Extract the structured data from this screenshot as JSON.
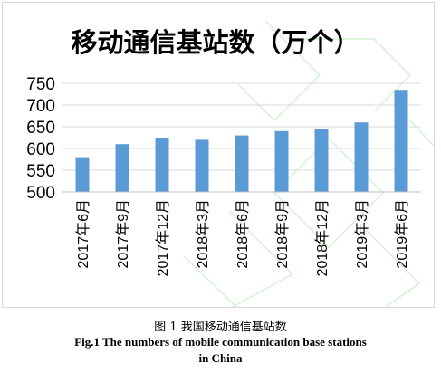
{
  "chart_data": {
    "type": "bar",
    "title": "移动通信基站数（万个）",
    "categories": [
      "2017年6月",
      "2017年9月",
      "2017年12月",
      "2018年3月",
      "2018年6月",
      "2018年9月",
      "2018年12月",
      "2019年3月",
      "2019年6月"
    ],
    "values": [
      580,
      610,
      625,
      620,
      630,
      640,
      645,
      660,
      735
    ],
    "yticks": [
      500,
      550,
      600,
      650,
      700,
      750
    ],
    "ylim": [
      500,
      750
    ],
    "grid": true,
    "legend": "none",
    "bar_color": "#5b9bd5",
    "grid_color": "#d9d9d9"
  },
  "caption": {
    "cn": "图 1  我国移动通信基站数",
    "en_line1": "Fig.1 The numbers of mobile communication base stations",
    "en_line2": "in China"
  }
}
